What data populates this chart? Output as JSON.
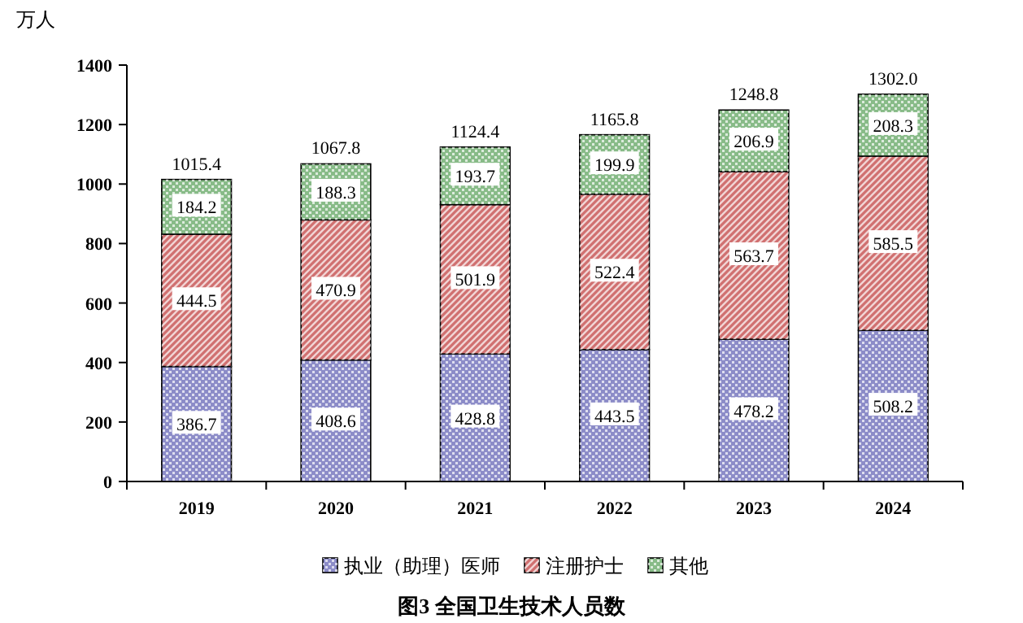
{
  "chart_data": {
    "type": "bar",
    "title": "图3 全国卫生技术人员数",
    "ylabel": "万人",
    "categories": [
      "2019",
      "2020",
      "2021",
      "2022",
      "2023",
      "2024"
    ],
    "stacked": true,
    "data_labels": true,
    "legend": "bottom",
    "grid": false,
    "ylim": [
      0,
      1400
    ],
    "yticks": [
      0,
      200,
      400,
      600,
      800,
      1000,
      1200,
      1400
    ],
    "series": [
      {
        "name": "执业（助理）医师",
        "color": "#8c8cc8",
        "values": [
          386.7,
          408.6,
          428.8,
          443.5,
          478.2,
          508.2
        ]
      },
      {
        "name": "注册护士",
        "color": "#d07070",
        "values": [
          444.5,
          470.9,
          501.9,
          522.4,
          563.7,
          585.5
        ]
      },
      {
        "name": "其他",
        "color": "#88bb88",
        "values": [
          184.2,
          188.3,
          193.7,
          199.9,
          206.9,
          208.3
        ]
      }
    ],
    "totals": [
      "1015.4",
      "1067.8",
      "1124.4",
      "1165.8",
      "1248.8",
      "1302.0"
    ]
  }
}
